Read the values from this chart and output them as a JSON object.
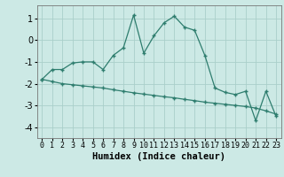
{
  "xlabel": "Humidex (Indice chaleur)",
  "ylabel": "",
  "background_color": "#cce9e5",
  "grid_color": "#b8d8d4",
  "line_color": "#2e7d6e",
  "xlim": [
    -0.5,
    23.5
  ],
  "ylim": [
    -4.5,
    1.6
  ],
  "yticks": [
    -4,
    -3,
    -2,
    -1,
    0,
    1
  ],
  "xticks": [
    0,
    1,
    2,
    3,
    4,
    5,
    6,
    7,
    8,
    9,
    10,
    11,
    12,
    13,
    14,
    15,
    16,
    17,
    18,
    19,
    20,
    21,
    22,
    23
  ],
  "line1_x": [
    0,
    1,
    2,
    3,
    4,
    5,
    6,
    7,
    8,
    9,
    10,
    11,
    12,
    13,
    14,
    15,
    16,
    17,
    18,
    19,
    20,
    21,
    22,
    23
  ],
  "line1_y": [
    -1.8,
    -1.35,
    -1.35,
    -1.05,
    -1.0,
    -1.0,
    -1.35,
    -0.7,
    -0.35,
    1.15,
    -0.6,
    0.2,
    0.8,
    1.1,
    0.6,
    0.45,
    -0.7,
    -2.2,
    -2.4,
    -2.5,
    -2.35,
    -3.7,
    -2.35,
    -3.5
  ],
  "line2_x": [
    0,
    1,
    2,
    3,
    4,
    5,
    6,
    7,
    8,
    9,
    10,
    11,
    12,
    13,
    14,
    15,
    16,
    17,
    18,
    19,
    20,
    21,
    22,
    23
  ],
  "line2_y": [
    -1.8,
    -1.9,
    -2.0,
    -2.05,
    -2.1,
    -2.15,
    -2.2,
    -2.28,
    -2.35,
    -2.42,
    -2.48,
    -2.54,
    -2.6,
    -2.65,
    -2.72,
    -2.78,
    -2.85,
    -2.9,
    -2.95,
    -3.0,
    -3.05,
    -3.12,
    -3.25,
    -3.4
  ]
}
